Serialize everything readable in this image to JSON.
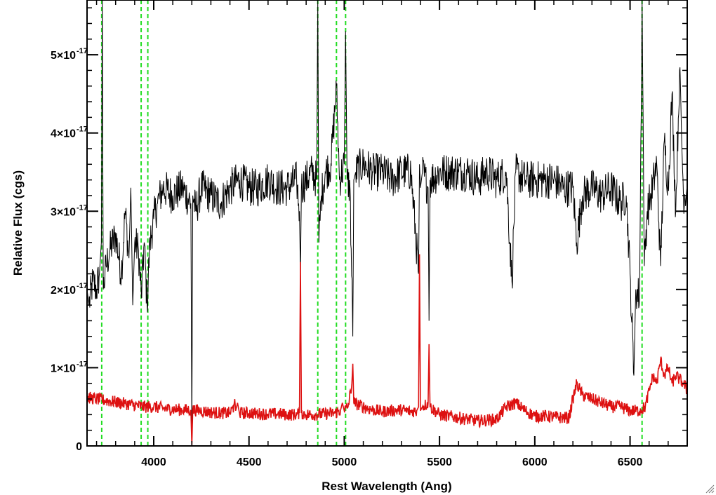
{
  "chart_data": {
    "type": "line",
    "title": "",
    "xlabel": "Rest Wavelength (Ang)",
    "ylabel": "Relative Flux (cgs)",
    "xlim": [
      3650,
      6800
    ],
    "ylim": [
      0,
      5.7e-17
    ],
    "grid": false,
    "legend": "none",
    "x_ticks": [
      {
        "value": 4000,
        "label": "4000"
      },
      {
        "value": 4500,
        "label": "4500"
      },
      {
        "value": 5000,
        "label": "5000"
      },
      {
        "value": 5500,
        "label": "5500"
      },
      {
        "value": 6000,
        "label": "6000"
      },
      {
        "value": 6500,
        "label": "6500"
      }
    ],
    "y_ticks": [
      {
        "value": 0,
        "label": "0",
        "exp": ""
      },
      {
        "value": 1e-17,
        "label": "1×10",
        "exp": "-17"
      },
      {
        "value": 2e-17,
        "label": "2×10",
        "exp": "-17"
      },
      {
        "value": 3e-17,
        "label": "3×10",
        "exp": "-17"
      },
      {
        "value": 4e-17,
        "label": "4×10",
        "exp": "-17"
      },
      {
        "value": 5e-17,
        "label": "5×10",
        "exp": "-17"
      }
    ],
    "x_minor_step": 100,
    "y_minor_step": 2e-18,
    "vlines": {
      "color": "#22dd22",
      "style": "dashed",
      "x": [
        3727,
        3934,
        3969,
        4861,
        4959,
        5007,
        6563
      ]
    },
    "series": [
      {
        "color": "#000000",
        "x": [
          3650,
          3660,
          3680,
          3700,
          3715,
          3725,
          3730,
          3735,
          3750,
          3770,
          3800,
          3830,
          3850,
          3870,
          3880,
          3890,
          3900,
          3920,
          3935,
          3950,
          3965,
          3980,
          4000,
          4020,
          4050,
          4100,
          4150,
          4195,
          4200,
          4205,
          4220,
          4250,
          4300,
          4350,
          4400,
          4450,
          4500,
          4550,
          4600,
          4650,
          4700,
          4750,
          4765,
          4770,
          4775,
          4800,
          4830,
          4855,
          4861,
          4867,
          4880,
          4900,
          4930,
          4959,
          4975,
          5000,
          5007,
          5015,
          5030,
          5045,
          5050,
          5060,
          5100,
          5150,
          5200,
          5250,
          5300,
          5350,
          5390,
          5395,
          5400,
          5410,
          5440,
          5445,
          5450,
          5500,
          5550,
          5600,
          5650,
          5700,
          5750,
          5800,
          5850,
          5880,
          5900,
          5950,
          6000,
          6050,
          6100,
          6150,
          6200,
          6220,
          6250,
          6300,
          6350,
          6400,
          6450,
          6480,
          6500,
          6520,
          6530,
          6550,
          6563,
          6575,
          6590,
          6610,
          6640,
          6660,
          6680,
          6700,
          6720,
          6740,
          6760,
          6780,
          6800
        ],
        "y": [
          2e-17,
          1.8e-17,
          2.1e-17,
          2e-17,
          2.2e-17,
          2.6e-17,
          5.7e-17,
          2e-17,
          2.3e-17,
          2.5e-17,
          2.7e-17,
          2.2e-17,
          3e-17,
          2.4e-17,
          3.3e-17,
          1.8e-17,
          2.6e-17,
          2.5e-17,
          1.9e-17,
          2.6e-17,
          1.8e-17,
          2.6e-17,
          2.9e-17,
          3.1e-17,
          3.3e-17,
          3.2e-17,
          3.3e-17,
          3.1e-17,
          2e-18,
          3.2e-17,
          3e-17,
          3.3e-17,
          3.2e-17,
          3.1e-17,
          3.3e-17,
          3.4e-17,
          3.3e-17,
          3.3e-17,
          3.4e-17,
          3.3e-17,
          3.3e-17,
          3.4e-17,
          3e-17,
          2.2e-17,
          3.3e-17,
          3.4e-17,
          3.5e-17,
          3.4e-17,
          5.7e-17,
          2.6e-17,
          3.2e-17,
          3.5e-17,
          3.6e-17,
          4.6e-17,
          3.4e-17,
          3.6e-17,
          5.3e-17,
          3.4e-17,
          3.3e-17,
          1.4e-17,
          3.4e-17,
          3.5e-17,
          3.6e-17,
          3.5e-17,
          3.5e-17,
          3.4e-17,
          3.5e-17,
          3.5e-17,
          2.2e-17,
          3.6e-17,
          3.3e-17,
          3.5e-17,
          3.3e-17,
          1.6e-17,
          3.4e-17,
          3.5e-17,
          3.5e-17,
          3.5e-17,
          3.5e-17,
          3.4e-17,
          3.5e-17,
          3.4e-17,
          3.5e-17,
          2.1e-17,
          3.5e-17,
          3.4e-17,
          3.4e-17,
          3.4e-17,
          3.4e-17,
          3.3e-17,
          3.3e-17,
          2.6e-17,
          3.2e-17,
          3.3e-17,
          3.2e-17,
          3.3e-17,
          3.1e-17,
          3.2e-17,
          2.2e-17,
          9e-18,
          2e-17,
          1.9e-17,
          5.7e-17,
          2.3e-17,
          3e-17,
          3.2e-17,
          3.6e-17,
          2.3e-17,
          3.9e-17,
          3.3e-17,
          4.5e-17,
          3e-17,
          4.8e-17,
          3.2e-17,
          3.3e-17
        ],
        "noise": 2.5e-18
      },
      {
        "color": "#dd1111",
        "x": [
          3650,
          3700,
          3750,
          3800,
          3850,
          3900,
          3950,
          4000,
          4050,
          4100,
          4150,
          4195,
          4200,
          4205,
          4250,
          4300,
          4350,
          4400,
          4420,
          4425,
          4430,
          4440,
          4450,
          4500,
          4550,
          4600,
          4650,
          4700,
          4750,
          4765,
          4770,
          4775,
          4800,
          4850,
          4900,
          4950,
          4980,
          4990,
          5000,
          5020,
          5040,
          5045,
          5050,
          5100,
          5150,
          5200,
          5250,
          5300,
          5350,
          5380,
          5390,
          5395,
          5400,
          5410,
          5440,
          5445,
          5450,
          5500,
          5550,
          5600,
          5650,
          5700,
          5750,
          5800,
          5850,
          5900,
          5950,
          6000,
          6050,
          6100,
          6150,
          6180,
          6200,
          6220,
          6250,
          6300,
          6350,
          6400,
          6450,
          6500,
          6550,
          6580,
          6600,
          6620,
          6640,
          6660,
          6680,
          6700,
          6720,
          6740,
          6760,
          6780,
          6800
        ],
        "y": [
          6.2e-18,
          6e-18,
          5.8e-18,
          5.6e-18,
          5.4e-18,
          5.2e-18,
          5e-18,
          5e-18,
          4.8e-18,
          4.7e-18,
          4.6e-18,
          4.6e-18,
          -5e-19,
          4.6e-18,
          4.5e-18,
          4.3e-18,
          4.2e-18,
          4.2e-18,
          5e-18,
          6e-18,
          4.5e-18,
          5.5e-18,
          4.2e-18,
          4.2e-18,
          4.1e-18,
          4.1e-18,
          4.1e-18,
          4e-18,
          4e-18,
          4.2e-18,
          2.35e-17,
          4.2e-18,
          4e-18,
          4e-18,
          4.1e-18,
          4.2e-18,
          4.5e-18,
          5.5e-18,
          4.5e-18,
          5e-18,
          8e-18,
          1.05e-17,
          5.5e-18,
          5e-18,
          4.6e-18,
          4.4e-18,
          4.5e-18,
          4.6e-18,
          4.4e-18,
          4.5e-18,
          5e-18,
          2.45e-17,
          4.5e-18,
          5e-18,
          5.5e-18,
          1.3e-17,
          5e-18,
          4e-18,
          3.8e-18,
          3.6e-18,
          3.4e-18,
          3.2e-18,
          3.3e-18,
          3.4e-18,
          5e-18,
          5.5e-18,
          4.5e-18,
          3.8e-18,
          3.8e-18,
          3.7e-18,
          3.6e-18,
          3.6e-18,
          6e-18,
          8e-18,
          6.5e-18,
          6e-18,
          5.5e-18,
          5e-18,
          5e-18,
          4.5e-18,
          4.5e-18,
          5e-18,
          7e-18,
          9e-18,
          8e-18,
          1.1e-17,
          9e-18,
          1e-17,
          8e-18,
          9e-18,
          8.5e-18,
          8e-18,
          7e-18
        ],
        "noise": 8e-19
      }
    ]
  },
  "icons": {
    "resize_grip": "resize-grip-icon"
  }
}
